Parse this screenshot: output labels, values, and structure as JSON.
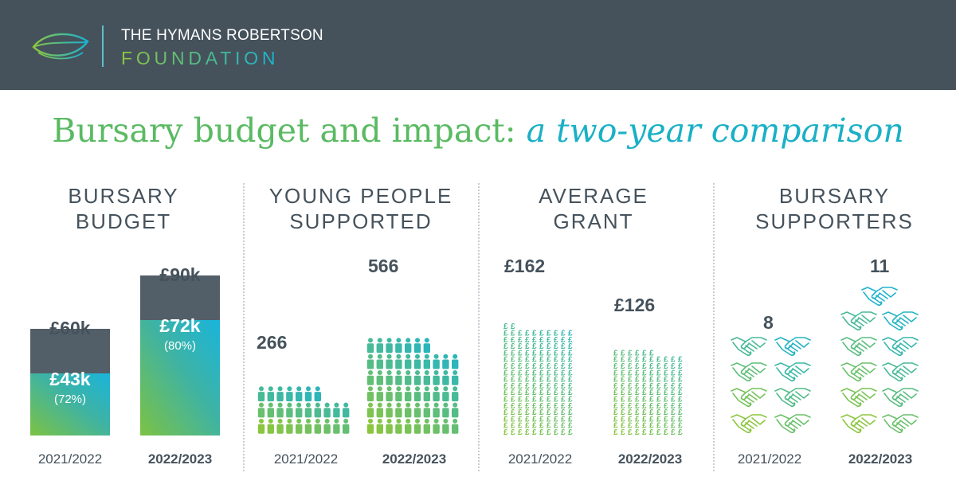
{
  "header": {
    "brand_line1": "THE HYMANS ROBERTSON",
    "brand_line2": "FOUNDATION",
    "background": "#45525c",
    "logo_icon": "leaf-icon"
  },
  "title": {
    "main": "Bursary budget and impact:",
    "italic": "a two-year comparison"
  },
  "colors": {
    "dark": "#45525c",
    "green": "#8cc63f",
    "teal": "#1ab2d2",
    "person_highlight": "#45525c"
  },
  "panels": [
    {
      "title_line1": "BURSARY",
      "title_line2": "BUDGET"
    },
    {
      "title_line1": "YOUNG PEOPLE",
      "title_line2": "SUPPORTED"
    },
    {
      "title_line1": "AVERAGE",
      "title_line2": "GRANT"
    },
    {
      "title_line1": "BURSARY",
      "title_line2": "SUPPORTERS"
    }
  ],
  "years": [
    "2021/2022",
    "2022/2023"
  ],
  "chart_data": [
    {
      "type": "bar",
      "title": "BURSARY BUDGET",
      "categories": [
        "2021/2022",
        "2022/2023"
      ],
      "series": [
        {
          "name": "budget",
          "values": [
            60,
            90
          ],
          "labels": [
            "£60k",
            "£90k"
          ]
        },
        {
          "name": "spent",
          "values": [
            43,
            72
          ],
          "labels": [
            "£43k",
            "£72k"
          ],
          "percent_labels": [
            "(72%)",
            "(80%)"
          ]
        }
      ]
    },
    {
      "type": "bar",
      "title": "YOUNG PEOPLE SUPPORTED",
      "icon": "person-icon",
      "categories": [
        "2021/2022",
        "2022/2023"
      ],
      "values": [
        266,
        566
      ],
      "labels": [
        "266",
        "566"
      ]
    },
    {
      "type": "bar",
      "title": "AVERAGE GRANT",
      "icon": "pound-icon",
      "categories": [
        "2021/2022",
        "2022/2023"
      ],
      "values": [
        162,
        126
      ],
      "labels": [
        "£162",
        "£126"
      ]
    },
    {
      "type": "bar",
      "title": "BURSARY SUPPORTERS",
      "icon": "handshake-icon",
      "categories": [
        "2021/2022",
        "2022/2023"
      ],
      "values": [
        8,
        11
      ],
      "labels": [
        "8",
        "11"
      ]
    }
  ]
}
